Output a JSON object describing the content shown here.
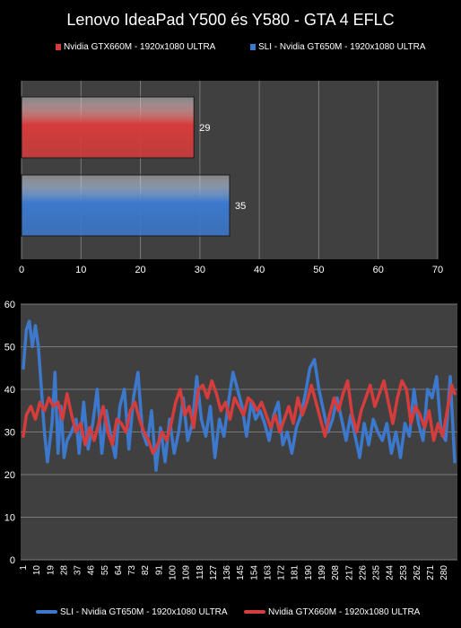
{
  "title": "Lenovo IdeaPad Y500 és Y580 - GTA 4 EFLC",
  "colors": {
    "red": "#d53c3c",
    "blue": "#3c78cc",
    "plot_bg": "#404040",
    "grid": "#7a7a7a"
  },
  "chart_data": [
    {
      "type": "bar",
      "orientation": "horizontal",
      "series": [
        {
          "name": "Nvidia GTX660M - 1920x1080 ULTRA",
          "values": [
            29
          ],
          "color": "#d53c3c"
        },
        {
          "name": "SLI - Nvidia GT650M - 1920x1080 ULTRA",
          "values": [
            35
          ],
          "color": "#3c78cc"
        }
      ],
      "xlim": [
        0,
        70
      ],
      "xticks": [
        0,
        10,
        20,
        30,
        40,
        50,
        60,
        70
      ],
      "data_labels": [
        "29",
        "35"
      ],
      "legend": "top"
    },
    {
      "type": "line",
      "ylim": [
        0,
        60
      ],
      "yticks": [
        0,
        10,
        20,
        30,
        40,
        50,
        60
      ],
      "xticks": [
        "1",
        "10",
        "19",
        "28",
        "37",
        "46",
        "55",
        "64",
        "73",
        "82",
        "91",
        "100",
        "109",
        "118",
        "127",
        "136",
        "145",
        "154",
        "163",
        "172",
        "181",
        "190",
        "199",
        "208",
        "217",
        "226",
        "235",
        "244",
        "253",
        "262",
        "271",
        "280"
      ],
      "x_range": [
        1,
        287
      ],
      "legend": "bottom",
      "series": [
        {
          "name": "SLI - Nvidia GT650M - 1920x1080 ULTRA",
          "color": "#3c78cc",
          "anchors": [
            [
              1,
              45
            ],
            [
              3,
              54
            ],
            [
              5,
              56
            ],
            [
              7,
              50
            ],
            [
              9,
              55
            ],
            [
              11,
              50
            ],
            [
              13,
              40
            ],
            [
              15,
              30
            ],
            [
              17,
              23
            ],
            [
              20,
              32
            ],
            [
              22,
              44
            ],
            [
              24,
              25
            ],
            [
              26,
              36
            ],
            [
              28,
              24
            ],
            [
              30,
              28
            ],
            [
              33,
              30
            ],
            [
              36,
              33
            ],
            [
              38,
              25
            ],
            [
              41,
              37
            ],
            [
              44,
              26
            ],
            [
              47,
              32
            ],
            [
              50,
              40
            ],
            [
              53,
              25
            ],
            [
              56,
              35
            ],
            [
              59,
              29
            ],
            [
              62,
              24
            ],
            [
              65,
              36
            ],
            [
              68,
              40
            ],
            [
              71,
              26
            ],
            [
              74,
              38
            ],
            [
              77,
              44
            ],
            [
              80,
              30
            ],
            [
              83,
              27
            ],
            [
              86,
              35
            ],
            [
              89,
              21
            ],
            [
              92,
              31
            ],
            [
              95,
              23
            ],
            [
              98,
              33
            ],
            [
              101,
              25
            ],
            [
              104,
              30
            ],
            [
              107,
              38
            ],
            [
              110,
              28
            ],
            [
              113,
              32
            ],
            [
              116,
              43
            ],
            [
              119,
              33
            ],
            [
              122,
              29
            ],
            [
              125,
              36
            ],
            [
              128,
              24
            ],
            [
              131,
              33
            ],
            [
              134,
              29
            ],
            [
              137,
              37
            ],
            [
              140,
              44
            ],
            [
              143,
              40
            ],
            [
              146,
              36
            ],
            [
              149,
              29
            ],
            [
              152,
              37
            ],
            [
              155,
              33
            ],
            [
              158,
              35
            ],
            [
              161,
              32
            ],
            [
              164,
              28
            ],
            [
              167,
              34
            ],
            [
              170,
              37
            ],
            [
              173,
              27
            ],
            [
              176,
              30
            ],
            [
              179,
              25
            ],
            [
              182,
              31
            ],
            [
              185,
              34
            ],
            [
              188,
              39
            ],
            [
              191,
              45
            ],
            [
              194,
              47
            ],
            [
              197,
              40
            ],
            [
              200,
              35
            ],
            [
              203,
              30
            ],
            [
              206,
              33
            ],
            [
              209,
              38
            ],
            [
              212,
              33
            ],
            [
              215,
              28
            ],
            [
              218,
              34
            ],
            [
              221,
              29
            ],
            [
              224,
              24
            ],
            [
              227,
              32
            ],
            [
              230,
              27
            ],
            [
              233,
              33
            ],
            [
              236,
              30
            ],
            [
              239,
              28
            ],
            [
              242,
              32
            ],
            [
              245,
              25
            ],
            [
              248,
              30
            ],
            [
              251,
              24
            ],
            [
              254,
              32
            ],
            [
              257,
              29
            ],
            [
              260,
              40
            ],
            [
              263,
              32
            ],
            [
              266,
              28
            ],
            [
              269,
              40
            ],
            [
              272,
              38
            ],
            [
              275,
              43
            ],
            [
              278,
              30
            ],
            [
              281,
              28
            ],
            [
              284,
              43
            ],
            [
              287,
              23
            ]
          ]
        },
        {
          "name": "Nvidia GTX660M - 1920x1080 ULTRA",
          "color": "#d53c3c",
          "anchors": [
            [
              1,
              29
            ],
            [
              3,
              34
            ],
            [
              6,
              36
            ],
            [
              9,
              33
            ],
            [
              12,
              37
            ],
            [
              15,
              35
            ],
            [
              18,
              38
            ],
            [
              21,
              36
            ],
            [
              24,
              37
            ],
            [
              27,
              33
            ],
            [
              30,
              39
            ],
            [
              33,
              34
            ],
            [
              36,
              30
            ],
            [
              39,
              32
            ],
            [
              42,
              27
            ],
            [
              45,
              31
            ],
            [
              48,
              28
            ],
            [
              51,
              32
            ],
            [
              54,
              36
            ],
            [
              57,
              30
            ],
            [
              60,
              27
            ],
            [
              63,
              33
            ],
            [
              66,
              32
            ],
            [
              69,
              30
            ],
            [
              72,
              35
            ],
            [
              75,
              37
            ],
            [
              78,
              33
            ],
            [
              81,
              30
            ],
            [
              84,
              28
            ],
            [
              87,
              25
            ],
            [
              90,
              27
            ],
            [
              93,
              30
            ],
            [
              96,
              28
            ],
            [
              99,
              32
            ],
            [
              102,
              37
            ],
            [
              105,
              40
            ],
            [
              108,
              34
            ],
            [
              111,
              36
            ],
            [
              114,
              31
            ],
            [
              117,
              40
            ],
            [
              120,
              41
            ],
            [
              123,
              38
            ],
            [
              126,
              42
            ],
            [
              129,
              39
            ],
            [
              132,
              35
            ],
            [
              135,
              37
            ],
            [
              138,
              33
            ],
            [
              141,
              38
            ],
            [
              144,
              36
            ],
            [
              147,
              34
            ],
            [
              150,
              38
            ],
            [
              153,
              37
            ],
            [
              156,
              35
            ],
            [
              159,
              37
            ],
            [
              162,
              34
            ],
            [
              165,
              31
            ],
            [
              168,
              34
            ],
            [
              171,
              30
            ],
            [
              174,
              33
            ],
            [
              177,
              36
            ],
            [
              180,
              32
            ],
            [
              183,
              38
            ],
            [
              186,
              34
            ],
            [
              189,
              37
            ],
            [
              192,
              41
            ],
            [
              195,
              37
            ],
            [
              198,
              33
            ],
            [
              201,
              29
            ],
            [
              204,
              34
            ],
            [
              207,
              38
            ],
            [
              210,
              35
            ],
            [
              213,
              39
            ],
            [
              216,
              42
            ],
            [
              219,
              34
            ],
            [
              222,
              30
            ],
            [
              225,
              35
            ],
            [
              228,
              38
            ],
            [
              231,
              41
            ],
            [
              234,
              36
            ],
            [
              237,
              39
            ],
            [
              240,
              42
            ],
            [
              243,
              37
            ],
            [
              246,
              32
            ],
            [
              249,
              38
            ],
            [
              252,
              42
            ],
            [
              255,
              40
            ],
            [
              258,
              32
            ],
            [
              261,
              36
            ],
            [
              264,
              34
            ],
            [
              267,
              31
            ],
            [
              270,
              35
            ],
            [
              273,
              28
            ],
            [
              276,
              32
            ],
            [
              279,
              29
            ],
            [
              282,
              35
            ],
            [
              285,
              41
            ],
            [
              287,
              39
            ]
          ]
        }
      ]
    }
  ]
}
